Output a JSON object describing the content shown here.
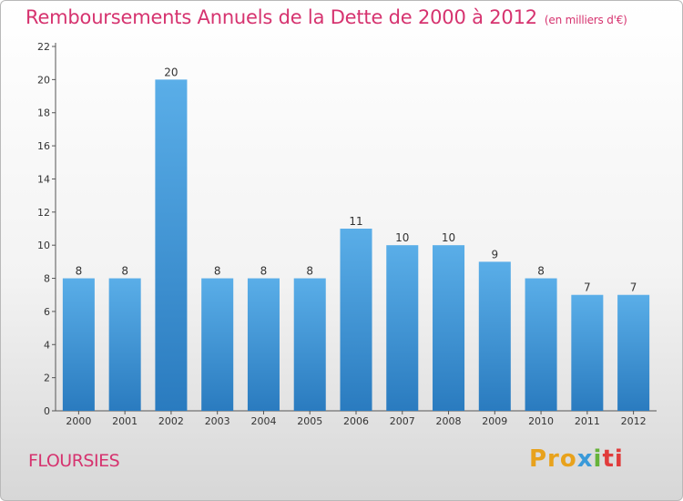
{
  "title": "Remboursements Annuels de la Dette de 2000 à 2012",
  "subtitle": "(en milliers d'€)",
  "commune": "FLOURSIES",
  "logo": {
    "p1": "Pro",
    "p2": "x",
    "p3": "i",
    "p4": "ti"
  },
  "colors": {
    "bar_top": "#5aaee8",
    "bar_bottom": "#2a7bbf",
    "title": "#d6336f"
  },
  "chart_data": {
    "type": "bar",
    "categories": [
      "2000",
      "2001",
      "2002",
      "2003",
      "2004",
      "2005",
      "2006",
      "2007",
      "2008",
      "2009",
      "2010",
      "2011",
      "2012"
    ],
    "values": [
      8,
      8,
      20,
      8,
      8,
      8,
      11,
      10,
      10,
      9,
      8,
      7,
      7
    ],
    "title": "Remboursements Annuels de la Dette de 2000 à 2012",
    "ylim": [
      0,
      22
    ],
    "yticks": [
      0,
      2,
      4,
      6,
      8,
      10,
      12,
      14,
      16,
      18,
      20,
      22
    ],
    "grid": false
  }
}
